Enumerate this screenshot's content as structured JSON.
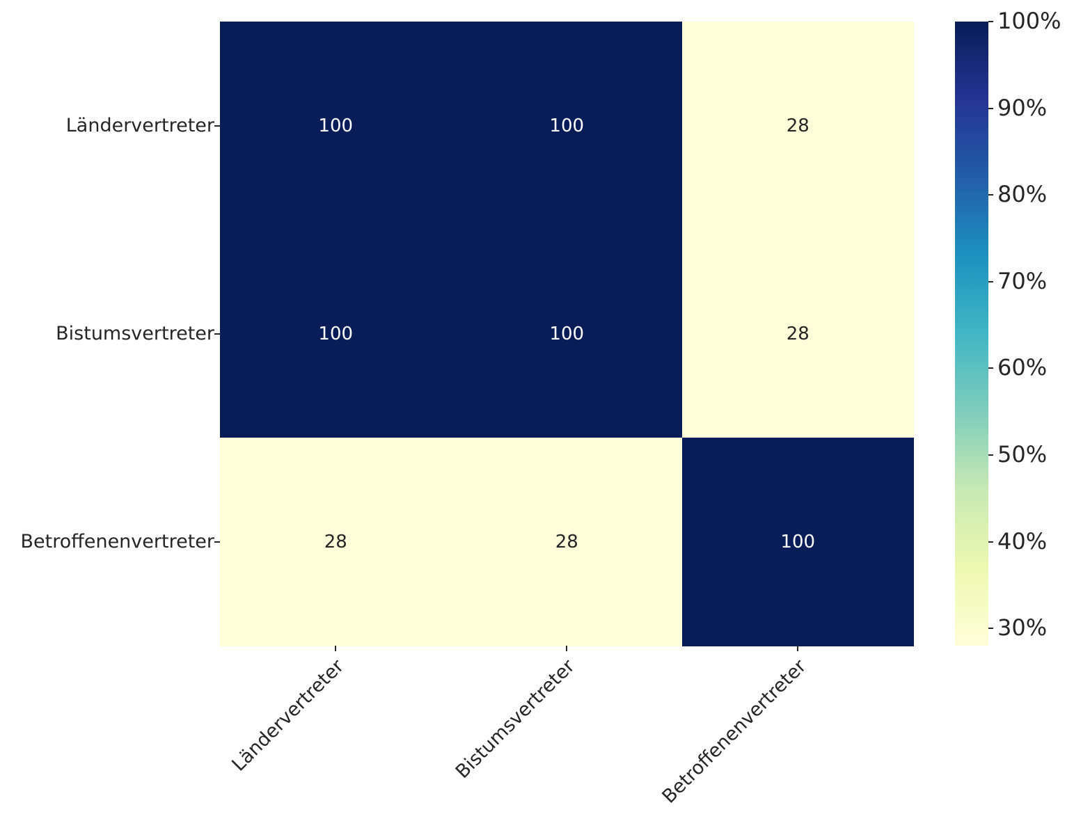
{
  "figure": {
    "background": "#ffffff",
    "text_color": "#262626"
  },
  "chart_data": {
    "type": "heatmap",
    "title": "",
    "xlabel": "",
    "ylabel": "",
    "rows": [
      "Ländervertreter",
      "Bistumsvertreter",
      "Betroffenenvertreter"
    ],
    "columns": [
      "Ländervertreter",
      "Bistumsvertreter",
      "Betroffenenvertreter"
    ],
    "values": [
      [
        100,
        100,
        28
      ],
      [
        100,
        100,
        28
      ],
      [
        28,
        28,
        100
      ]
    ],
    "vmin": 28,
    "vmax": 100,
    "grid": false,
    "colormap": {
      "name": "YlGnBu",
      "anchors": [
        "#ffffd9",
        "#edf8b1",
        "#c7e9b4",
        "#7fcdbb",
        "#41b6c4",
        "#1d91c0",
        "#225ea8",
        "#253494",
        "#081d58"
      ]
    },
    "annotation_text_colors": {
      "on_dark": "#ffffff",
      "on_light": "#262626"
    },
    "colorbar": {
      "position": "right",
      "tick_values": [
        100,
        90,
        80,
        70,
        60,
        50,
        40,
        30
      ],
      "tick_labels": [
        "100%",
        "90%",
        "80%",
        "70%",
        "60%",
        "50%",
        "40%",
        "30%"
      ]
    }
  }
}
